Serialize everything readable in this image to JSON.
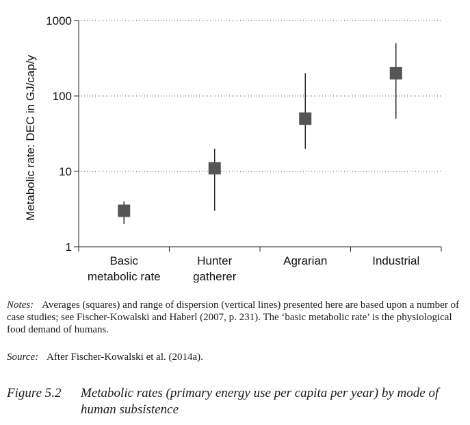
{
  "chart_data": {
    "type": "scatter",
    "ylabel": "Metabolic rate: DEC in GJ/cap/y",
    "xlabel": "",
    "yscale": "log",
    "ylim": [
      1,
      1000
    ],
    "yticks": [
      "1",
      "10",
      "100",
      "1000"
    ],
    "grid": "dotted horizontal at 10, 100, 1000",
    "categories": [
      [
        "Basic",
        "metabolic rate"
      ],
      [
        "Hunter",
        "gatherer"
      ],
      [
        "Agrarian"
      ],
      [
        "Industrial"
      ]
    ],
    "series": [
      {
        "values": [
          3,
          11,
          50,
          200
        ],
        "low": [
          2,
          3,
          20,
          50
        ],
        "high": [
          4,
          20,
          200,
          500
        ]
      }
    ],
    "colors": {
      "marker": "#555555",
      "range": "#1a1a1a",
      "axis": "#222222"
    }
  },
  "notes": {
    "label": "Notes:",
    "text": "Averages (squares) and range of dispersion (vertical lines) presented here are based upon a number of case studies; see Fischer-Kowalski and Haberl (2007, p. 231). The ‘basic metabolic rate’ is the physiological food demand of humans."
  },
  "source": {
    "label": "Source:",
    "text": "After Fischer-Kowalski et al. (2014a)."
  },
  "caption": {
    "number": "Figure 5.2",
    "text": "Metabolic rates (primary energy use per capita per year) by mode of human subsistence"
  }
}
